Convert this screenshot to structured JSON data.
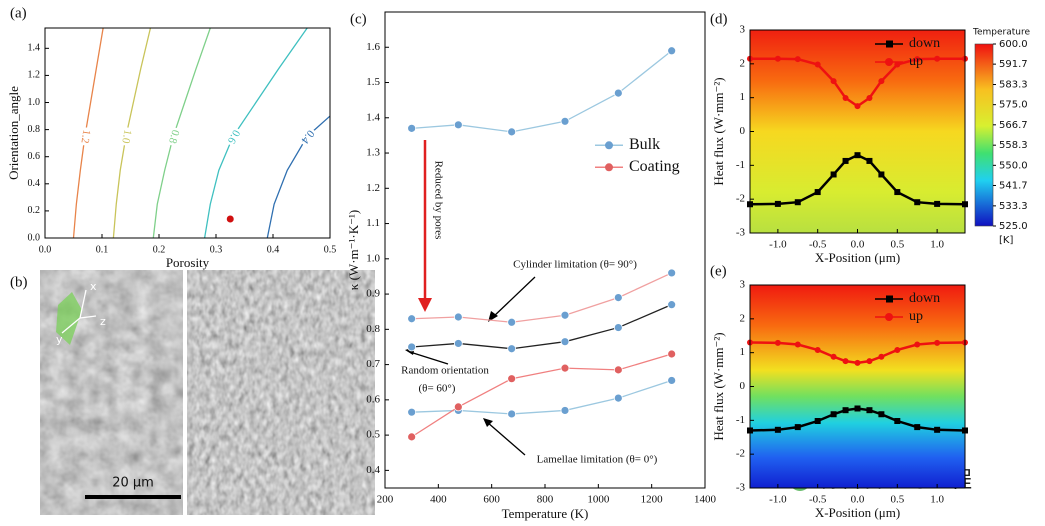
{
  "chart_data": [
    {
      "type": "contour",
      "panel_label": "(a)",
      "x_label": "Porosity",
      "y_label": "Orientation_angle",
      "xlim": [
        0,
        0.5
      ],
      "ylim": [
        0,
        1.55
      ],
      "xticks": [
        {
          "value": 0,
          "label": "0.0"
        },
        0.1,
        0.2,
        0.3,
        0.4,
        0.5
      ],
      "yticks": [
        {
          "value": 0,
          "label": "0.0"
        },
        0.2,
        0.4,
        0.6,
        0.8,
        {
          "value": 1,
          "label": "1.0"
        },
        1.2,
        1.4
      ],
      "contours": [
        {
          "label": "1.2",
          "color": "#e8844a",
          "x": [
            0.05,
            0.055,
            0.062,
            0.07,
            0.08,
            0.09,
            0.102
          ],
          "y": [
            0,
            0.25,
            0.5,
            0.75,
            1,
            1.25,
            1.55
          ]
        },
        {
          "label": "1.0",
          "color": "#c9c45a",
          "x": [
            0.12,
            0.125,
            0.132,
            0.142,
            0.155,
            0.168,
            0.185
          ],
          "y": [
            0,
            0.25,
            0.5,
            0.75,
            1,
            1.25,
            1.55
          ]
        },
        {
          "label": "0.8",
          "color": "#7fd08a",
          "x": [
            0.19,
            0.197,
            0.21,
            0.225,
            0.245,
            0.265,
            0.29
          ],
          "y": [
            0,
            0.25,
            0.5,
            0.75,
            1,
            1.25,
            1.55
          ]
        },
        {
          "label": "0.6",
          "color": "#3fc0c0",
          "x": [
            0.28,
            0.29,
            0.305,
            0.33,
            0.37,
            0.41,
            0.46
          ],
          "y": [
            0,
            0.25,
            0.5,
            0.75,
            1,
            1.25,
            1.55
          ]
        },
        {
          "label": "0.4",
          "color": "#2f6fb0",
          "x": [
            0.39,
            0.402,
            0.425,
            0.46,
            0.5
          ],
          "y": [
            0,
            0.25,
            0.5,
            0.75,
            0.9
          ]
        }
      ],
      "points": [
        {
          "x": 0.325,
          "y": 0.14,
          "color": "#d01010"
        }
      ]
    },
    {
      "type": "line",
      "panel_label": "(c)",
      "x_label": "Temperature (K)",
      "y_label": "κ (W·m⁻¹·K⁻¹)",
      "xlim": [
        200,
        1400
      ],
      "ylim": [
        0.35,
        1.7
      ],
      "xticks": [
        200,
        400,
        600,
        800,
        1000,
        1200,
        1400
      ],
      "yticks": [
        0.4,
        0.5,
        0.6,
        0.7,
        0.8,
        0.9,
        {
          "value": 1,
          "label": "1.0"
        },
        1.1,
        1.2,
        1.3,
        1.4,
        1.5,
        1.6
      ],
      "x": [
        300,
        475,
        675,
        875,
        1075,
        1275
      ],
      "legend": "center right",
      "series": [
        {
          "name": "Bulk",
          "color": "#9cc8e0",
          "marker_color": "#6a9fd0",
          "marker": "circle",
          "values": [
            1.37,
            1.38,
            1.36,
            1.39,
            1.47,
            1.59
          ]
        },
        {
          "color": "#f0a0a0",
          "marker_color": "#6a9fd0",
          "marker": "circle",
          "values": [
            0.83,
            0.835,
            0.82,
            0.84,
            0.89,
            0.96
          ]
        },
        {
          "color": "#222222",
          "marker_color": "#6a9fd0",
          "marker": "circle",
          "values": [
            0.75,
            0.76,
            0.745,
            0.765,
            0.805,
            0.87
          ]
        },
        {
          "color": "#9cc8e0",
          "marker_color": "#6a9fd0",
          "marker": "circle",
          "values": [
            0.565,
            0.57,
            0.56,
            0.57,
            0.605,
            0.655
          ]
        },
        {
          "name": "Coating",
          "color": "#f08080",
          "marker_color": "#e06060",
          "marker": "circle",
          "values": [
            0.495,
            0.58,
            0.66,
            0.69,
            0.685,
            0.73
          ]
        }
      ],
      "annotations": [
        "Reduced by pores",
        "Cylinder limitation (θ= 90°)",
        "Random orientation",
        "(θ= 60°)",
        "Lamellae limitation (θ= 0°)"
      ]
    },
    {
      "type": "line",
      "panel_label": "(d)",
      "x_label": "X-Position (μm)",
      "y_label": "Heat flux (W·mm⁻²)",
      "xlim": [
        -1.35,
        1.35
      ],
      "ylim": [
        -3,
        3
      ],
      "xticks": [
        {
          "value": -1,
          "label": "-1.0"
        },
        -0.5,
        {
          "value": 0,
          "label": "0.0"
        },
        0.5,
        {
          "value": 1,
          "label": "1.0"
        }
      ],
      "yticks": [
        -3,
        -2,
        -1,
        0,
        1,
        2,
        3
      ],
      "x": [
        -1.35,
        -1,
        -0.75,
        -0.5,
        -0.3,
        -0.15,
        0,
        0.15,
        0.3,
        0.5,
        0.75,
        1,
        1.35
      ],
      "legend": "upper right",
      "series": [
        {
          "name": "down",
          "color": "#000000",
          "marker_color": "#000000",
          "marker": "square",
          "values": [
            -2.15,
            -2.14,
            -2.09,
            -1.79,
            -1.27,
            -0.87,
            -0.7,
            -0.87,
            -1.27,
            -1.79,
            -2.09,
            -2.14,
            -2.15
          ]
        },
        {
          "name": "up",
          "color": "#ee1111",
          "marker_color": "#ee1111",
          "marker": "circle",
          "values": [
            2.15,
            2.15,
            2.14,
            1.98,
            1.49,
            0.99,
            0.75,
            0.99,
            1.49,
            1.98,
            2.14,
            2.15,
            2.15
          ]
        }
      ],
      "colorbar": {
        "title": "Temperature",
        "unit": "[K]",
        "clim": [
          525,
          600
        ],
        "ticks": [
          {
            "value": 600,
            "label": "600.0"
          },
          591.7,
          583.3,
          {
            "value": 575,
            "label": "575.0"
          },
          566.7,
          558.3,
          {
            "value": 550,
            "label": "550.0"
          },
          541.7,
          533.3,
          {
            "value": 525,
            "label": "525.0"
          }
        ]
      }
    },
    {
      "type": "line",
      "panel_label": "(e)",
      "x_label": "X-Position (μm)",
      "y_label": "Heat flux (W·mm⁻²)",
      "xlim": [
        -1.35,
        1.35
      ],
      "ylim": [
        -3,
        3
      ],
      "xticks": [
        {
          "value": -1,
          "label": "-1.0"
        },
        -0.5,
        {
          "value": 0,
          "label": "0.0"
        },
        0.5,
        {
          "value": 1,
          "label": "1.0"
        }
      ],
      "yticks": [
        -3,
        -2,
        -1,
        0,
        1,
        2,
        3
      ],
      "x": [
        -1.35,
        -1,
        -0.75,
        -0.5,
        -0.3,
        -0.15,
        0,
        0.15,
        0.3,
        0.5,
        0.75,
        1,
        1.35
      ],
      "legend": "upper right",
      "series": [
        {
          "name": "down",
          "color": "#000000",
          "marker_color": "#000000",
          "marker": "square",
          "values": [
            -1.3,
            -1.28,
            -1.2,
            -1.02,
            -0.82,
            -0.7,
            -0.65,
            -0.7,
            -0.82,
            -1.02,
            -1.2,
            -1.28,
            -1.3
          ]
        },
        {
          "name": "up",
          "color": "#ee1111",
          "marker_color": "#ee1111",
          "marker": "circle",
          "values": [
            1.3,
            1.29,
            1.24,
            1.08,
            0.88,
            0.75,
            0.7,
            0.75,
            0.88,
            1.08,
            1.24,
            1.29,
            1.3
          ]
        }
      ]
    }
  ],
  "image_b": {
    "panel_label": "(b)",
    "axis_x": "x",
    "axis_y": "y",
    "axis_z": "z",
    "scale_bar": "20 μm"
  },
  "watermark": "材料科学与工程"
}
